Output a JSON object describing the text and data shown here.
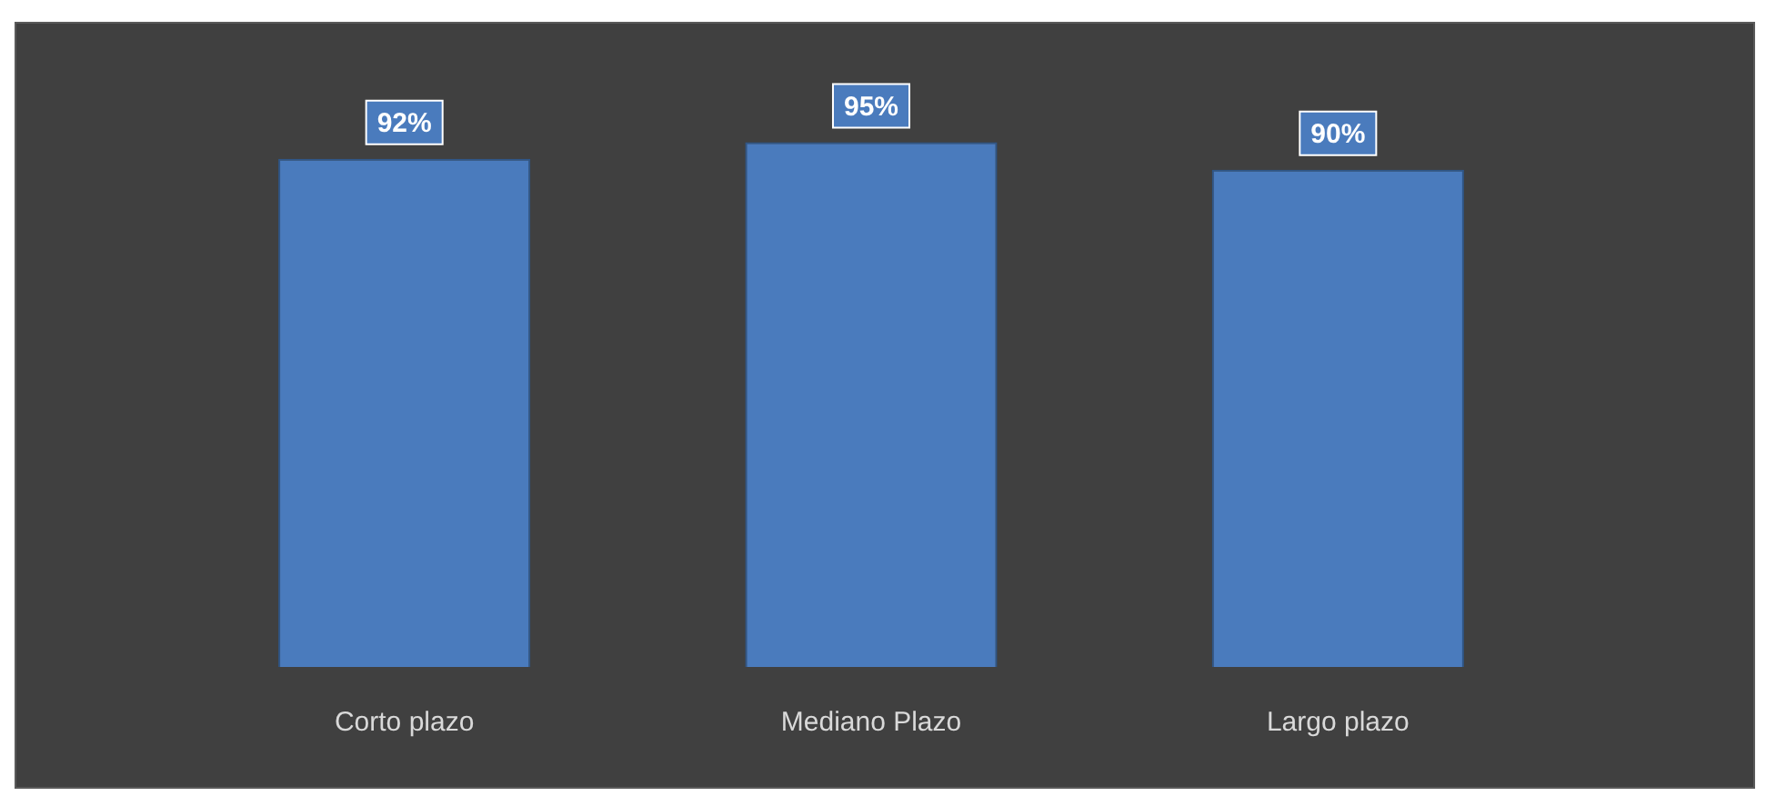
{
  "chart_data": {
    "type": "bar",
    "categories": [
      "Corto plazo",
      "Mediano Plazo",
      "Largo plazo"
    ],
    "values": [
      92,
      95,
      90
    ],
    "color": "#4a7bbd",
    "value_labels": [
      "92%",
      "95%",
      "90%"
    ],
    "tick_labels": "x",
    "grid": false,
    "legend": false
  }
}
